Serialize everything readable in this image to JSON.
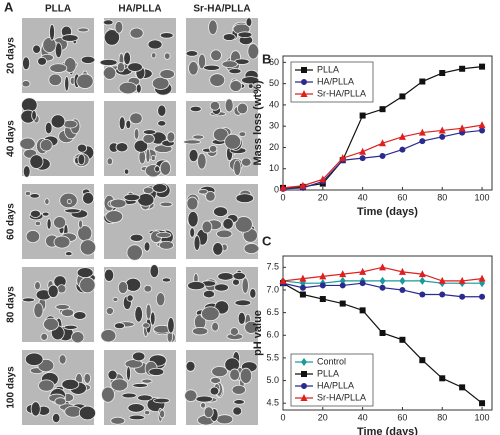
{
  "panel_a": {
    "label": "A",
    "columns": [
      "PLLA",
      "HA/PLLA",
      "Sr-HA/PLLA"
    ],
    "rows": [
      "20 days",
      "40 days",
      "60 days",
      "80 days",
      "100 days"
    ]
  },
  "chart_data": [
    {
      "type": "line",
      "label": "B",
      "xlabel": "Time (days)",
      "ylabel": "Mass loss (wt%)",
      "x": [
        0,
        10,
        20,
        30,
        40,
        50,
        60,
        70,
        80,
        90,
        100
      ],
      "xlim": [
        0,
        105
      ],
      "ylim": [
        0,
        63
      ],
      "xticks": [
        0,
        20,
        40,
        60,
        80,
        100
      ],
      "yticks": [
        0,
        10,
        20,
        30,
        40,
        50,
        60
      ],
      "legend": "upper left",
      "series": [
        {
          "name": "PLLA",
          "color": "#111111",
          "marker": "square",
          "values": [
            1,
            1.5,
            3,
            14,
            35,
            38,
            44,
            51,
            55,
            57,
            58
          ]
        },
        {
          "name": "HA/PLLA",
          "color": "#2b2b8f",
          "marker": "circle",
          "values": [
            0.5,
            1,
            4,
            14,
            15,
            16,
            19,
            23,
            25,
            27,
            28
          ]
        },
        {
          "name": "Sr-HA/PLLA",
          "color": "#e02020",
          "marker": "triangle",
          "values": [
            1,
            2,
            5,
            15,
            18,
            22,
            25,
            27,
            28,
            29,
            30.5
          ]
        }
      ]
    },
    {
      "type": "line",
      "label": "C",
      "xlabel": "Time (days)",
      "ylabel": "pH value",
      "x": [
        0,
        10,
        20,
        30,
        40,
        50,
        60,
        70,
        80,
        90,
        100
      ],
      "xlim": [
        0,
        105
      ],
      "ylim": [
        4.35,
        7.75
      ],
      "xticks": [
        0,
        20,
        40,
        60,
        80,
        100
      ],
      "yticks": [
        {
          "value": 4.5,
          "label": "4.5"
        },
        {
          "value": 5,
          "label": "5.0"
        },
        {
          "value": 5.5,
          "label": "5.5"
        },
        {
          "value": 6,
          "label": "6.0"
        },
        {
          "value": 6.5,
          "label": "6.5"
        },
        {
          "value": 7,
          "label": "7.0"
        },
        {
          "value": 7.5,
          "label": "7.5"
        }
      ],
      "legend": "lower left",
      "series": [
        {
          "name": "Control",
          "color": "#1a9a9a",
          "marker": "diamond",
          "values": [
            7.2,
            7.15,
            7.15,
            7.2,
            7.2,
            7.2,
            7.2,
            7.2,
            7.15,
            7.15,
            7.15
          ]
        },
        {
          "name": "PLLA",
          "color": "#111111",
          "marker": "square",
          "values": [
            7.15,
            6.9,
            6.8,
            6.7,
            6.55,
            6.05,
            5.9,
            5.45,
            5.05,
            4.85,
            4.5
          ]
        },
        {
          "name": "HA/PLLA",
          "color": "#2b2b8f",
          "marker": "circle",
          "values": [
            7.15,
            7.05,
            7.1,
            7.1,
            7.15,
            7.05,
            7,
            6.9,
            6.9,
            6.85,
            6.85
          ]
        },
        {
          "name": "Sr-HA/PLLA",
          "color": "#e02020",
          "marker": "triangle",
          "values": [
            7.2,
            7.25,
            7.3,
            7.35,
            7.4,
            7.5,
            7.4,
            7.35,
            7.2,
            7.2,
            7.25
          ]
        }
      ]
    }
  ]
}
